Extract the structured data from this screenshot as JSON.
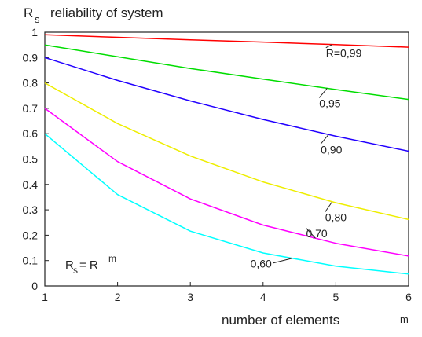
{
  "chart_data": {
    "type": "line",
    "title": "reliability of system",
    "ylabel_symbol": "R",
    "ylabel_subscript": "s",
    "xlabel": "number of elements",
    "x_unit": "m",
    "x": [
      1,
      2,
      3,
      4,
      5,
      6
    ],
    "xlim": [
      1,
      6
    ],
    "ylim": [
      0,
      1
    ],
    "xticks": [
      "1",
      "2",
      "3",
      "4",
      "5",
      "6"
    ],
    "yticks": [
      "0",
      "0.1",
      "0.2",
      "0.3",
      "0.4",
      "0.5",
      "0.6",
      "0.7",
      "0.8",
      "0.9",
      "1"
    ],
    "grid": false,
    "formula": {
      "lhs": "R",
      "lhs_sub": "s",
      "eq": "= R",
      "exp": "m"
    },
    "series": [
      {
        "name": "R=0,99",
        "R": 0.99,
        "color": "#ff0000",
        "values": [
          0.99,
          0.98,
          0.97,
          0.961,
          0.951,
          0.941
        ]
      },
      {
        "name": "0,95",
        "R": 0.95,
        "color": "#00dd00",
        "values": [
          0.95,
          0.903,
          0.857,
          0.815,
          0.774,
          0.735
        ]
      },
      {
        "name": "0,90",
        "R": 0.9,
        "color": "#2200ff",
        "values": [
          0.9,
          0.81,
          0.729,
          0.656,
          0.59,
          0.531
        ]
      },
      {
        "name": "0,80",
        "R": 0.8,
        "color": "#eeee00",
        "values": [
          0.8,
          0.64,
          0.512,
          0.41,
          0.328,
          0.262
        ]
      },
      {
        "name": "0,70",
        "R": 0.7,
        "color": "#ff00ff",
        "values": [
          0.7,
          0.49,
          0.343,
          0.24,
          0.168,
          0.118
        ]
      },
      {
        "name": "0,60",
        "R": 0.6,
        "color": "#00ffff",
        "values": [
          0.6,
          0.36,
          0.216,
          0.13,
          0.078,
          0.047
        ]
      }
    ]
  }
}
